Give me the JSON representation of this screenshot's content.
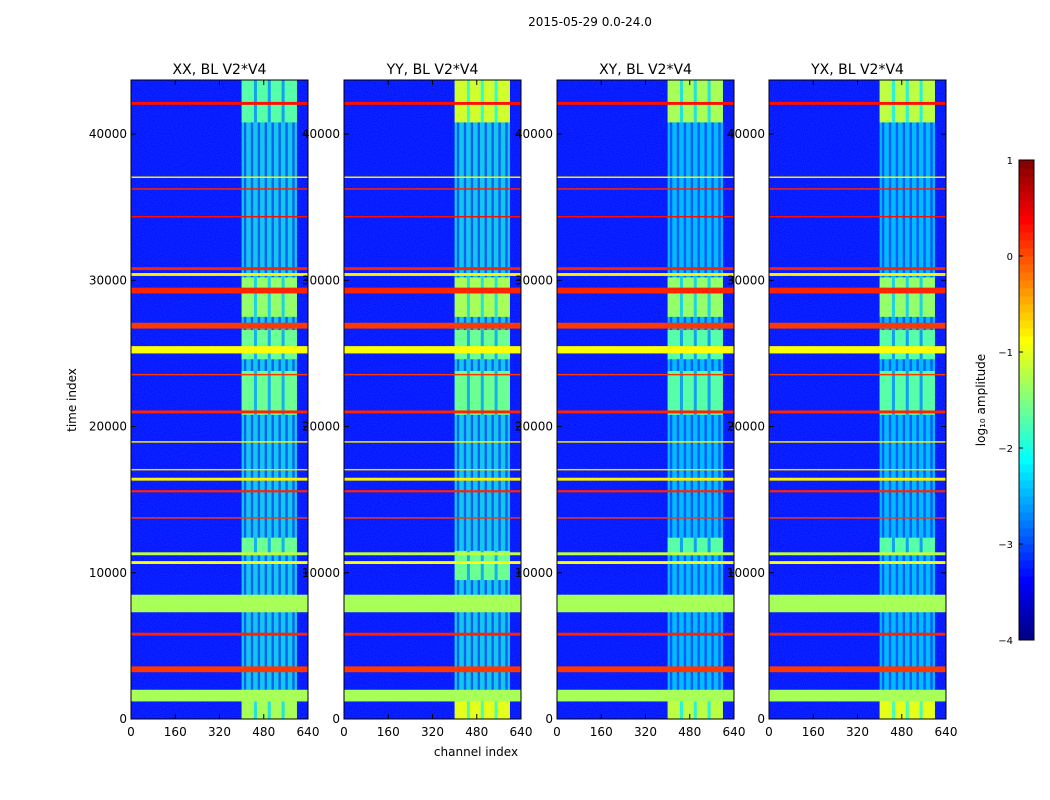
{
  "figure": {
    "suptitle": "2015-05-29 0.0-24.0"
  },
  "chart_data": {
    "type": "heatmap",
    "xlabel": "channel index",
    "ylabel": "time index",
    "x_ticks": [
      0,
      160,
      320,
      480,
      640
    ],
    "y_ticks": [
      0,
      10000,
      20000,
      30000,
      40000
    ],
    "xlim": [
      0,
      640
    ],
    "ylim": [
      0,
      43700
    ],
    "colormap": "jet",
    "colorbar": {
      "label": "log₁₀ amplitude",
      "range": [
        -4,
        1
      ],
      "ticks": [
        "−4",
        "−3",
        "−2",
        "−1",
        "0",
        "1"
      ],
      "tick_values": [
        -4,
        -3,
        -2,
        -1,
        0,
        1
      ]
    },
    "background_log_amplitude": -3.3,
    "panels": [
      {
        "title": "XX, BL V2*V4",
        "rfi_band_channels": [
          400,
          600
        ],
        "rfi_band_level": -2.0,
        "rfi_blocks": [
          [
            0,
            1300,
            -1.3
          ],
          [
            11200,
            12400,
            -1.6
          ],
          [
            20800,
            23800,
            -1.6
          ],
          [
            24600,
            26600,
            -1.6
          ],
          [
            27500,
            30200,
            -1.4
          ],
          [
            40800,
            43700,
            -1.7
          ]
        ]
      },
      {
        "title": "YY, BL V2*V4",
        "rfi_band_channels": [
          400,
          600
        ],
        "rfi_band_level": -2.0,
        "rfi_blocks": [
          [
            0,
            1300,
            -1.0
          ],
          [
            9500,
            11500,
            -1.6
          ],
          [
            20800,
            23800,
            -1.6
          ],
          [
            24600,
            26600,
            -1.6
          ],
          [
            27500,
            30200,
            -1.3
          ],
          [
            40800,
            43700,
            -1.1
          ]
        ]
      },
      {
        "title": "XY, BL V2*V4",
        "rfi_band_channels": [
          400,
          600
        ],
        "rfi_band_level": -2.2,
        "rfi_blocks": [
          [
            0,
            1300,
            -1.2
          ],
          [
            11200,
            12400,
            -1.7
          ],
          [
            20800,
            23800,
            -1.7
          ],
          [
            24600,
            26600,
            -1.7
          ],
          [
            27500,
            30200,
            -1.4
          ],
          [
            40800,
            43700,
            -1.3
          ]
        ]
      },
      {
        "title": "YX, BL V2*V4",
        "rfi_band_channels": [
          400,
          600
        ],
        "rfi_band_level": -2.2,
        "rfi_blocks": [
          [
            0,
            1300,
            -1.0
          ],
          [
            11200,
            12400,
            -1.7
          ],
          [
            20800,
            23800,
            -1.7
          ],
          [
            24600,
            26600,
            -1.7
          ],
          [
            27500,
            30200,
            -1.4
          ],
          [
            40800,
            43700,
            -1.2
          ]
        ]
      }
    ],
    "horizontal_lines": [
      {
        "start": 1200,
        "end": 2000,
        "level": -1.3
      },
      {
        "start": 3200,
        "end": 3600,
        "level": 0.1
      },
      {
        "start": 5700,
        "end": 5900,
        "level": 0.2
      },
      {
        "start": 7300,
        "end": 8500,
        "level": -1.3
      },
      {
        "start": 10600,
        "end": 10800,
        "level": -0.9
      },
      {
        "start": 11200,
        "end": 11400,
        "level": -1.2
      },
      {
        "start": 13700,
        "end": 13800,
        "level": 0.1
      },
      {
        "start": 15500,
        "end": 15650,
        "level": 0.2
      },
      {
        "start": 16300,
        "end": 16500,
        "level": -0.8
      },
      {
        "start": 17000,
        "end": 17100,
        "level": -0.7
      },
      {
        "start": 18900,
        "end": 19000,
        "level": -0.8
      },
      {
        "start": 20900,
        "end": 21100,
        "level": 0.2
      },
      {
        "start": 23500,
        "end": 23600,
        "level": 0.1
      },
      {
        "start": 25000,
        "end": 25500,
        "level": -0.9
      },
      {
        "start": 26700,
        "end": 27100,
        "level": 0.1
      },
      {
        "start": 29100,
        "end": 29500,
        "level": 0.2
      },
      {
        "start": 30300,
        "end": 30500,
        "level": -0.8
      },
      {
        "start": 30700,
        "end": 30900,
        "level": 0.2
      },
      {
        "start": 34300,
        "end": 34400,
        "level": 0.3
      },
      {
        "start": 36200,
        "end": 36300,
        "level": 0.2
      },
      {
        "start": 37000,
        "end": 37100,
        "level": -0.8
      },
      {
        "start": 42000,
        "end": 42200,
        "level": 0.3
      }
    ]
  }
}
